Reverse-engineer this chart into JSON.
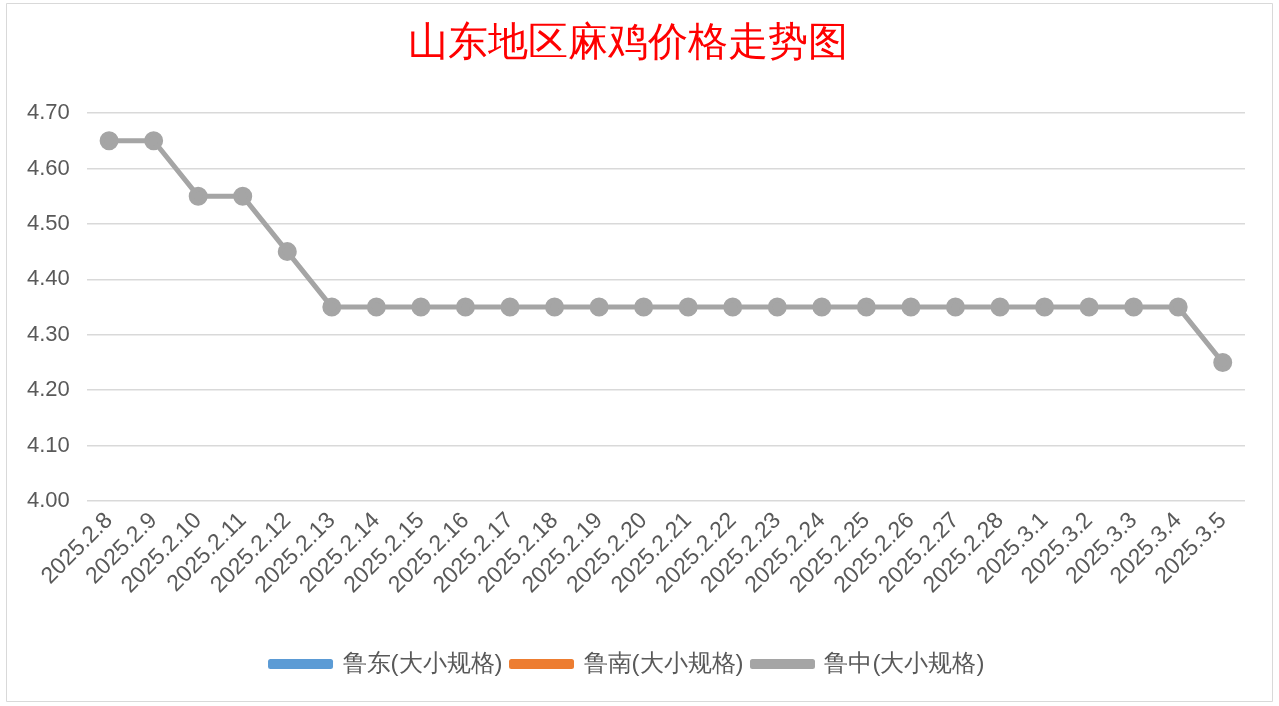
{
  "chart_data": {
    "type": "line",
    "title": "山东地区麻鸡价格走势图",
    "categories": [
      "2025.2.8",
      "2025.2.9",
      "2025.2.10",
      "2025.2.11",
      "2025.2.12",
      "2025.2.13",
      "2025.2.14",
      "2025.2.15",
      "2025.2.16",
      "2025.2.17",
      "2025.2.18",
      "2025.2.19",
      "2025.2.20",
      "2025.2.21",
      "2025.2.22",
      "2025.2.23",
      "2025.2.24",
      "2025.2.25",
      "2025.2.26",
      "2025.2.27",
      "2025.2.28",
      "2025.3.1",
      "2025.3.2",
      "2025.3.3",
      "2025.3.4",
      "2025.3.5"
    ],
    "series": [
      {
        "name": "鲁东(大小规格)",
        "color": "#5b9bd5",
        "values": [
          null,
          null,
          null,
          null,
          null,
          null,
          null,
          null,
          null,
          null,
          null,
          null,
          null,
          null,
          null,
          null,
          null,
          null,
          null,
          null,
          null,
          null,
          null,
          null,
          null,
          null
        ]
      },
      {
        "name": "鲁南(大小规格)",
        "color": "#ed7d31",
        "values": [
          null,
          null,
          null,
          null,
          null,
          null,
          null,
          null,
          null,
          null,
          null,
          null,
          null,
          null,
          null,
          null,
          null,
          null,
          null,
          null,
          null,
          null,
          null,
          null,
          null,
          null
        ]
      },
      {
        "name": "鲁中(大小规格)",
        "color": "#a5a5a5",
        "values": [
          4.65,
          4.65,
          4.55,
          4.55,
          4.45,
          4.35,
          4.35,
          4.35,
          4.35,
          4.35,
          4.35,
          4.35,
          4.35,
          4.35,
          4.35,
          4.35,
          4.35,
          4.35,
          4.35,
          4.35,
          4.35,
          4.35,
          4.35,
          4.35,
          4.35,
          4.25
        ]
      }
    ],
    "ylim": [
      4.0,
      4.7
    ],
    "yticks": [
      {
        "value": 4.0,
        "label": "4.00"
      },
      {
        "value": 4.1,
        "label": "4.10"
      },
      {
        "value": 4.2,
        "label": "4.20"
      },
      {
        "value": 4.3,
        "label": "4.30"
      },
      {
        "value": 4.4,
        "label": "4.40"
      },
      {
        "value": 4.5,
        "label": "4.50"
      },
      {
        "value": 4.6,
        "label": "4.60"
      },
      {
        "value": 4.7,
        "label": "4.70"
      }
    ],
    "grid": "y",
    "legend": "bottom",
    "marker": "circle"
  }
}
